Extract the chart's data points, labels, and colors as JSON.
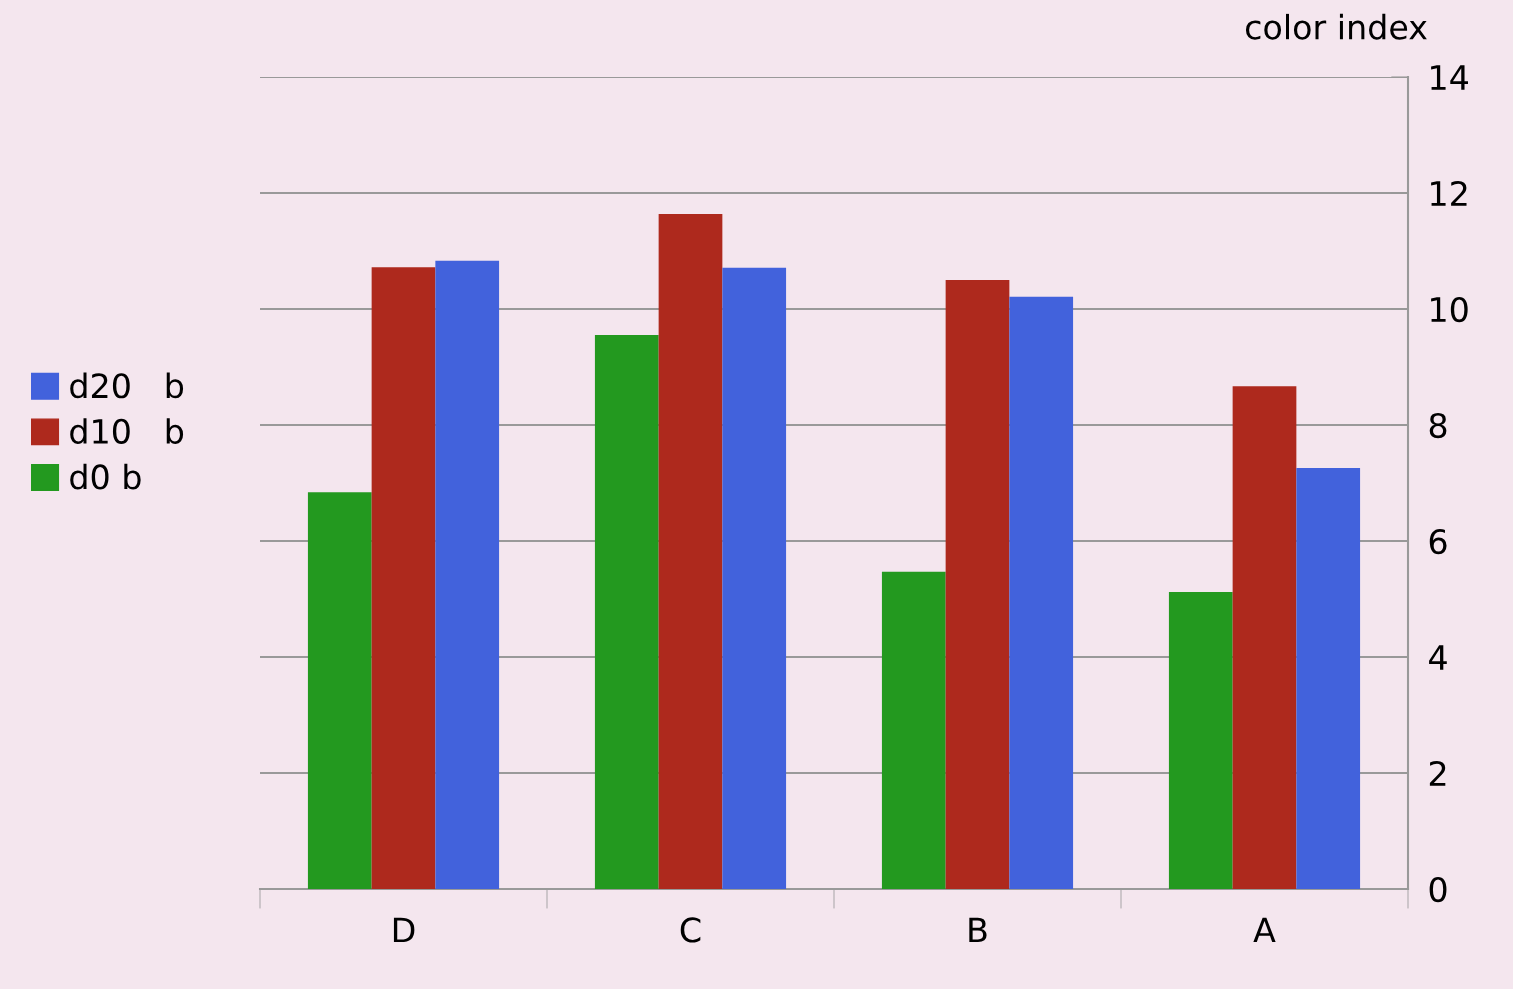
{
  "chart_data": {
    "type": "bar",
    "ylabel": "color index",
    "categories": [
      "D",
      "C",
      "B",
      "A"
    ],
    "series": [
      {
        "name": "d0 b",
        "color": "#23991f",
        "values": [
          6.84,
          9.55,
          5.47,
          5.12
        ]
      },
      {
        "name": "d10   b",
        "color": "#ae291d",
        "values": [
          10.72,
          11.64,
          10.5,
          8.67
        ]
      },
      {
        "name": "d20   b",
        "color": "#4262dc",
        "values": [
          10.83,
          10.71,
          10.21,
          7.26
        ]
      }
    ],
    "ylim": [
      0,
      14
    ],
    "yticks": [
      0,
      2,
      4,
      6,
      8,
      10,
      12,
      14
    ],
    "grid": "y",
    "legend": "left"
  }
}
